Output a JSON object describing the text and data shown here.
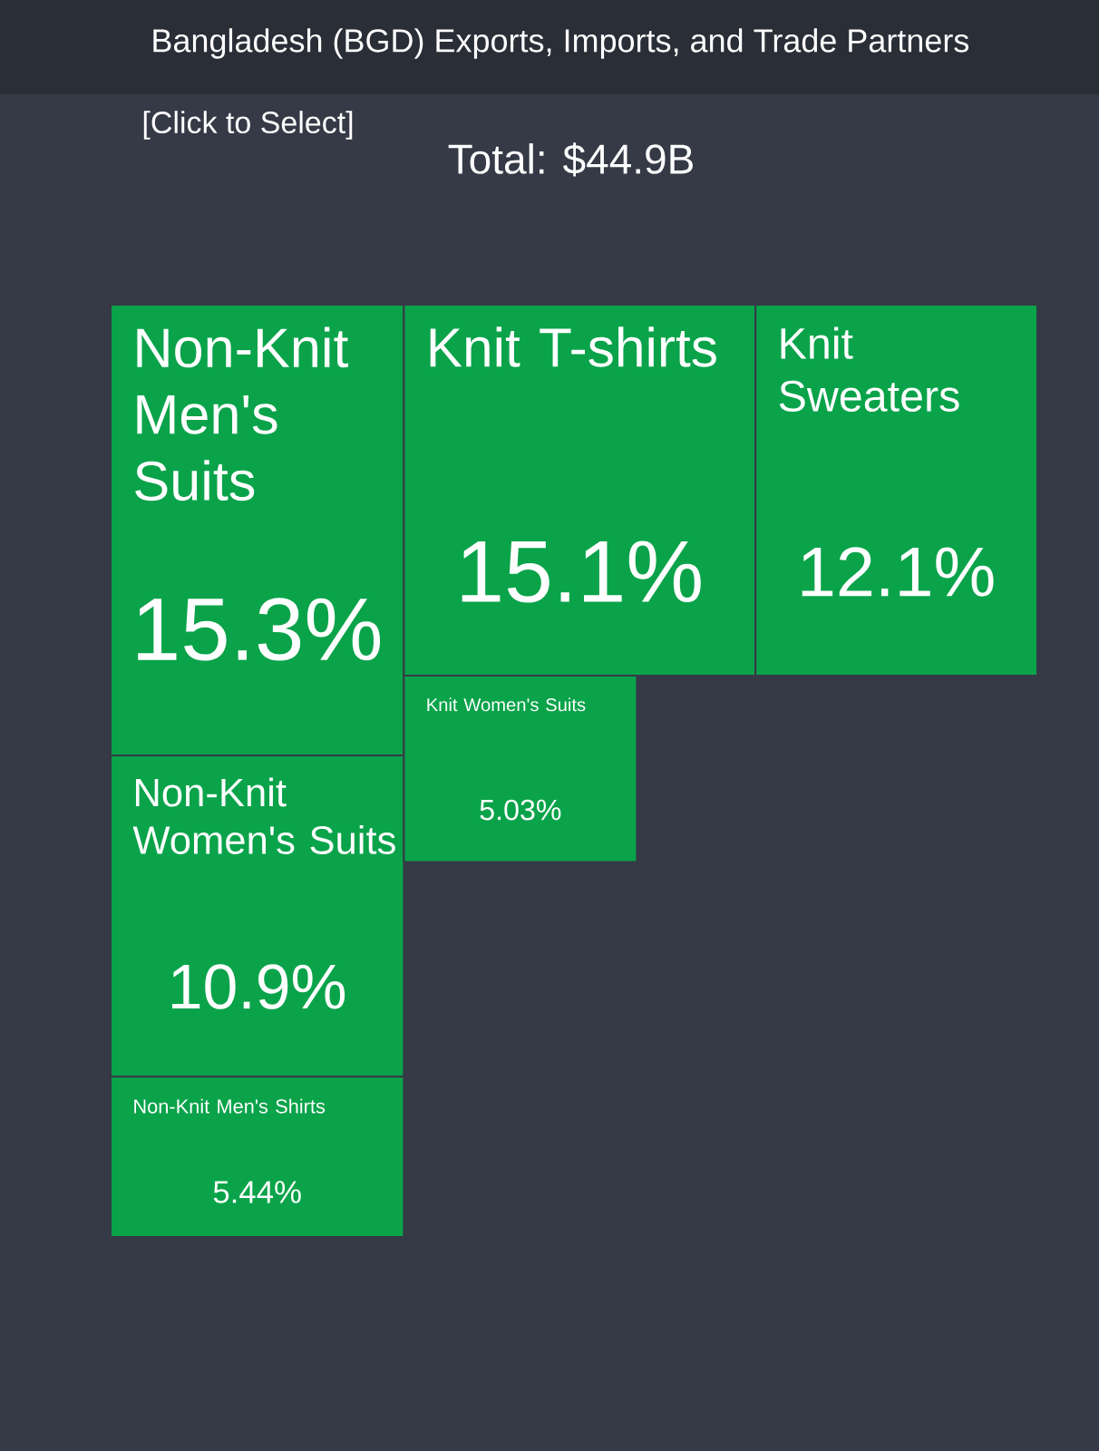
{
  "chart_data": {
    "type": "other",
    "title": "Bangladesh (BGD) Exports, Imports, and Trade Partners",
    "annotations": [
      "[Click to Select]",
      "Total: $44.9B"
    ],
    "categories": [
      "Non-Knit Men's Suits",
      "Knit T-shirts",
      "Knit Sweaters",
      "Non-Knit Women's Suits",
      "Knit Women's Suits",
      "Non-Knit Men's Shirts"
    ],
    "values": [
      15.3,
      15.1,
      12.1,
      10.9,
      5.03,
      5.44
    ],
    "value_labels": [
      "15.3%",
      "15.1%",
      "12.1%",
      "10.9%",
      "5.03%",
      "5.44%"
    ],
    "colors": [
      "#0aa34a",
      "#0aa34a",
      "#0aa34a",
      "#0aa34a",
      "#0aa34a",
      "#0aa34a"
    ]
  }
}
